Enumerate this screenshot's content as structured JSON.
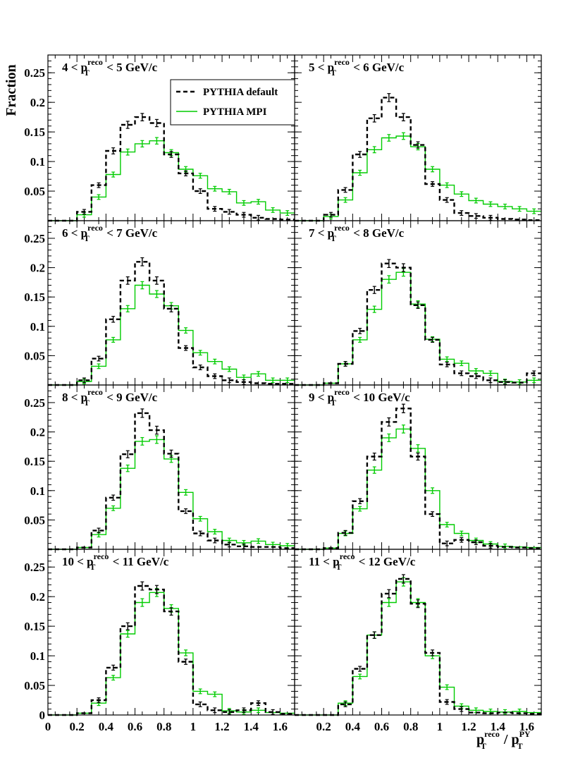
{
  "figure": {
    "y_axis_title": "Fraction",
    "x_axis_title": {
      "base": "p",
      "sup1": "reco",
      "sub1": "T",
      "sep": " / p",
      "sup2": "PY",
      "sub2": "T"
    }
  },
  "legend": {
    "location": "top-right of first panel",
    "entries": [
      {
        "label": "PYTHIA default",
        "style": "dashed",
        "color": "#000000"
      },
      {
        "label": "PYTHIA MPI",
        "style": "solid",
        "color": "#00cc00"
      }
    ]
  },
  "colors": {
    "default": "#000000",
    "mpi": "#00cc00",
    "frame": "#000000"
  },
  "chart_data": {
    "type": "histogram-grid",
    "xlim": [
      0,
      1.7
    ],
    "ylim": [
      0,
      0.28
    ],
    "x_ticks": [
      0,
      0.2,
      0.4,
      0.6,
      0.8,
      1,
      1.2,
      1.4,
      1.6
    ],
    "y_ticks": [
      0.05,
      0.1,
      0.15,
      0.2,
      0.25
    ],
    "x_tick_labels": [
      "0",
      "0.2",
      "0.4",
      "0.6",
      "0.8",
      "1",
      "1.2",
      "1.4",
      "1.6"
    ],
    "x_tick_labels_right": [
      "0.2",
      "0.4",
      "0.6",
      "0.8",
      "1",
      "1.2",
      "1.4",
      "1.6"
    ],
    "y_tick_labels": [
      "0.05",
      "0.1",
      "0.15",
      "0.2",
      "0.25"
    ],
    "y_tick_labels_bottom": [
      "0",
      "0.05",
      "0.1",
      "0.15",
      "0.2",
      "0.25"
    ],
    "bin_edges": [
      0,
      0.1,
      0.2,
      0.3,
      0.4,
      0.5,
      0.6,
      0.7,
      0.8,
      0.9,
      1.0,
      1.1,
      1.2,
      1.3,
      1.4,
      1.5,
      1.6,
      1.7
    ],
    "panels": [
      {
        "title": {
          "lo": "4",
          "hi": "5"
        },
        "default": [
          0,
          0,
          0.015,
          0.06,
          0.118,
          0.162,
          0.175,
          0.165,
          0.112,
          0.08,
          0.05,
          0.02,
          0.015,
          0.01,
          0.005,
          0.003,
          0.002
        ],
        "mpi": [
          0,
          0,
          0.01,
          0.04,
          0.078,
          0.116,
          0.13,
          0.135,
          0.115,
          0.087,
          0.076,
          0.054,
          0.049,
          0.03,
          0.032,
          0.018,
          0.013
        ]
      },
      {
        "title": {
          "lo": "5",
          "hi": "6"
        },
        "default": [
          0,
          0,
          0.01,
          0.052,
          0.112,
          0.173,
          0.208,
          0.175,
          0.128,
          0.062,
          0.035,
          0.013,
          0.008,
          0.005,
          0.003,
          0.002,
          0.001
        ],
        "mpi": [
          0,
          0,
          0.007,
          0.035,
          0.081,
          0.12,
          0.14,
          0.143,
          0.125,
          0.087,
          0.06,
          0.045,
          0.034,
          0.028,
          0.024,
          0.02,
          0.016
        ]
      },
      {
        "title": {
          "lo": "6",
          "hi": "7"
        },
        "default": [
          0,
          0,
          0.008,
          0.045,
          0.112,
          0.178,
          0.21,
          0.178,
          0.13,
          0.063,
          0.03,
          0.015,
          0.008,
          0.005,
          0.003,
          0.002,
          0.002
        ],
        "mpi": [
          0,
          0,
          0.006,
          0.032,
          0.077,
          0.13,
          0.17,
          0.155,
          0.135,
          0.093,
          0.055,
          0.04,
          0.027,
          0.013,
          0.019,
          0.008,
          0.008
        ]
      },
      {
        "title": {
          "lo": "7",
          "hi": "8"
        },
        "default": [
          0,
          0,
          0.003,
          0.036,
          0.092,
          0.162,
          0.207,
          0.2,
          0.136,
          0.077,
          0.035,
          0.02,
          0.015,
          0.008,
          0.005,
          0.004,
          0.02
        ],
        "mpi": [
          0,
          0,
          0.003,
          0.036,
          0.077,
          0.129,
          0.18,
          0.192,
          0.138,
          0.078,
          0.044,
          0.037,
          0.024,
          0.02,
          0.006,
          0.005,
          0.008
        ]
      },
      {
        "title": {
          "lo": "8",
          "hi": "9"
        },
        "default": [
          0,
          0,
          0.003,
          0.032,
          0.088,
          0.162,
          0.232,
          0.203,
          0.163,
          0.065,
          0.027,
          0.015,
          0.008,
          0.005,
          0.004,
          0.004,
          0.002
        ],
        "mpi": [
          0,
          0,
          0.003,
          0.025,
          0.07,
          0.138,
          0.184,
          0.187,
          0.154,
          0.097,
          0.052,
          0.03,
          0.015,
          0.011,
          0.014,
          0.008,
          0.006
        ]
      },
      {
        "title": {
          "lo": "9",
          "hi": "10"
        },
        "default": [
          0,
          0,
          0.002,
          0.028,
          0.082,
          0.158,
          0.217,
          0.24,
          0.158,
          0.06,
          0.01,
          0.016,
          0.012,
          0.006,
          0.004,
          0.003,
          0.002
        ],
        "mpi": [
          0,
          0,
          0.002,
          0.027,
          0.069,
          0.135,
          0.19,
          0.205,
          0.172,
          0.1,
          0.042,
          0.027,
          0.015,
          0.009,
          0.005,
          0.004,
          0.003
        ]
      },
      {
        "title": {
          "lo": "10",
          "hi": "11"
        },
        "default": [
          0,
          0,
          0.003,
          0.025,
          0.08,
          0.15,
          0.218,
          0.212,
          0.175,
          0.09,
          0.018,
          0.008,
          0.005,
          0.008,
          0.02,
          0.005,
          0.002
        ],
        "mpi": [
          0,
          0,
          0.003,
          0.02,
          0.063,
          0.137,
          0.19,
          0.207,
          0.18,
          0.105,
          0.04,
          0.035,
          0.007,
          0.005,
          0.008,
          0.004,
          0.003
        ]
      },
      {
        "title": {
          "lo": "11",
          "hi": "12"
        },
        "default": [
          0,
          0,
          0,
          0.018,
          0.078,
          0.135,
          0.205,
          0.23,
          0.188,
          0.105,
          0.022,
          0.01,
          0.004,
          0.003,
          0.004,
          0.003,
          0.002
        ],
        "mpi": [
          0,
          0,
          0,
          0.02,
          0.065,
          0.135,
          0.19,
          0.225,
          0.19,
          0.1,
          0.047,
          0.015,
          0.008,
          0.006,
          0.005,
          0.006,
          0.004
        ]
      }
    ]
  }
}
